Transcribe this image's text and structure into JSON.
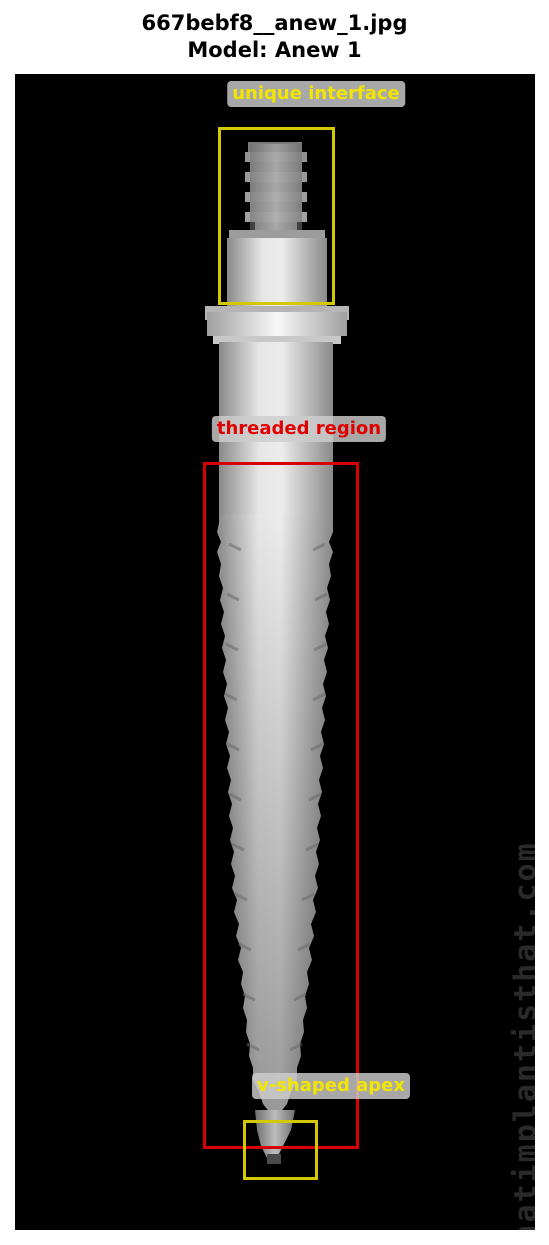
{
  "header": {
    "filename": "667bebf8__anew_1.jpg",
    "model_line": "Model: Anew 1"
  },
  "image": {
    "background": "#000000",
    "watermark": "whatimplantisthat.com"
  },
  "annotations": [
    {
      "label": "unique interface",
      "color": "#f2e600",
      "box_color": "#d4c800"
    },
    {
      "label": "threaded region",
      "color": "#e00000",
      "box_color": "#d80000"
    },
    {
      "label": "v-shaped apex",
      "color": "#f2e600",
      "box_color": "#d4c800"
    }
  ]
}
